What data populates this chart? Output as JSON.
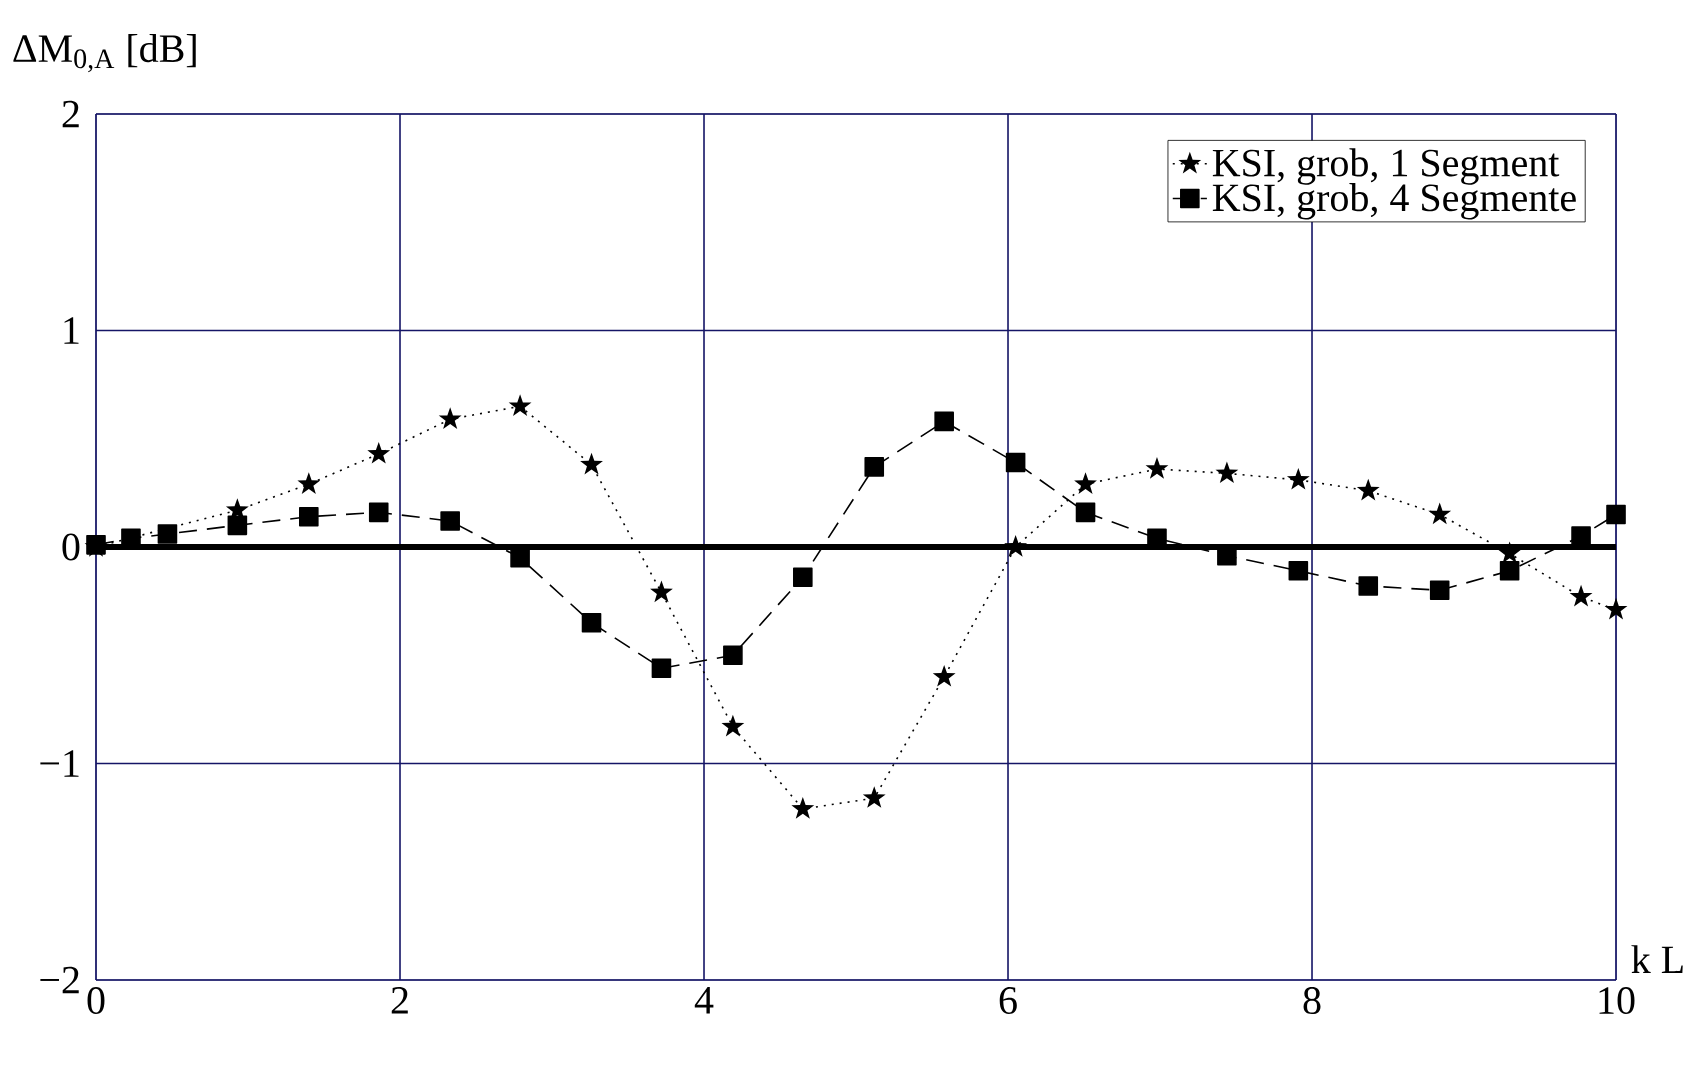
{
  "chart_data": {
    "type": "line",
    "xlabel": "k L",
    "ylabel": "ΔM$_{0,A}$ [dB]",
    "xlim": [
      0,
      10
    ],
    "ylim": [
      -2,
      2
    ],
    "xticks": [
      0,
      2,
      4,
      6,
      8,
      10
    ],
    "yticks": [
      {
        "value": -2,
        "label": "−2"
      },
      {
        "value": -1,
        "label": "−1"
      },
      0,
      1,
      2
    ],
    "grid": true,
    "legend": "top right",
    "ref_lines": [
      {
        "axis": "y",
        "value": 0,
        "color": "#000000"
      }
    ],
    "series": [
      {
        "name": "KSI, grob, 1 Segment",
        "color": "#000000",
        "marker": "star",
        "line_style": "dotted",
        "x": [
          0,
          0.47,
          0.93,
          1.4,
          1.86,
          2.33,
          2.79,
          3.26,
          3.72,
          4.19,
          4.65,
          5.12,
          5.58,
          6.05,
          6.51,
          6.98,
          7.44,
          7.91,
          8.37,
          8.84,
          9.3,
          9.77,
          10
        ],
        "values": [
          0,
          null,
          0.17,
          0.29,
          0.43,
          0.59,
          0.65,
          0.38,
          -0.21,
          -0.83,
          -1.21,
          -1.16,
          -0.6,
          0.0,
          0.29,
          0.36,
          0.34,
          0.31,
          0.26,
          0.15,
          -0.03,
          -0.23,
          -0.29
        ]
      },
      {
        "name": "KSI, grob, 4 Segmente",
        "color": "#000000",
        "marker": "square",
        "line_style": "dashed",
        "x": [
          0,
          0.23,
          0.47,
          0.93,
          1.4,
          1.86,
          2.33,
          2.79,
          3.26,
          3.72,
          4.19,
          4.65,
          5.12,
          5.58,
          6.05,
          6.51,
          6.98,
          7.44,
          7.91,
          8.37,
          8.84,
          9.3,
          9.77,
          10
        ],
        "values": [
          0.01,
          0.04,
          0.06,
          0.1,
          0.14,
          0.16,
          0.12,
          -0.05,
          -0.35,
          -0.56,
          -0.5,
          -0.14,
          0.37,
          0.58,
          0.39,
          0.16,
          0.04,
          -0.04,
          -0.11,
          -0.18,
          -0.2,
          -0.11,
          0.05,
          0.15
        ]
      }
    ]
  }
}
